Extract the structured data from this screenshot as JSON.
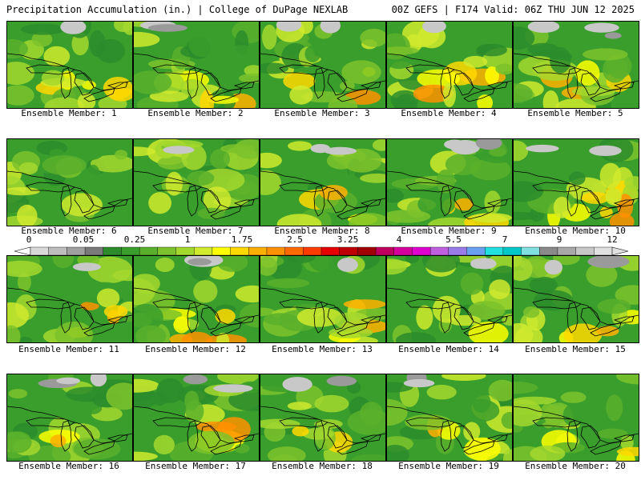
{
  "header": {
    "left_title": "Precipitation Accumulation (in.) | College of DuPage NEXLAB",
    "right_title": "00Z GEFS | F174 Valid: 06Z THU JUN 12 2025"
  },
  "members": [
    "Ensemble Member: 1",
    "Ensemble Member: 2",
    "Ensemble Member: 3",
    "Ensemble Member: 4",
    "Ensemble Member: 5",
    "Ensemble Member: 6",
    "Ensemble Member: 7",
    "Ensemble Member: 8",
    "Ensemble Member: 9",
    "Ensemble Member: 10",
    "Ensemble Member: 11",
    "Ensemble Member: 12",
    "Ensemble Member: 13",
    "Ensemble Member: 14",
    "Ensemble Member: 15",
    "Ensemble Member: 16",
    "Ensemble Member: 17",
    "Ensemble Member: 18",
    "Ensemble Member: 19",
    "Ensemble Member: 20"
  ],
  "colorbar": {
    "labels": [
      "0",
      "0.05",
      "0.25",
      "1",
      "1.75",
      "2.5",
      "3.25",
      "4",
      "5.5",
      "7",
      "9",
      "12"
    ],
    "colors": [
      "#d9d9d9",
      "#bdbdbd",
      "#a0a0a0",
      "#7a7a7a",
      "#2c8c2c",
      "#3a9e2c",
      "#5ab02c",
      "#7cc22c",
      "#a4d82e",
      "#d0ea2e",
      "#ffff00",
      "#ffd800",
      "#ffb000",
      "#ff9000",
      "#ff6a00",
      "#ff3c00",
      "#e60000",
      "#c00000",
      "#a00000",
      "#c00060",
      "#d8009c",
      "#e000d0",
      "#c060e0",
      "#9a7ce8",
      "#6aa0f0",
      "#20e0e0",
      "#00c8c8",
      "#80e0e0",
      "#8a8a8a",
      "#a8a8a8",
      "#c8c8c8",
      "#e0e0e0"
    ]
  }
}
